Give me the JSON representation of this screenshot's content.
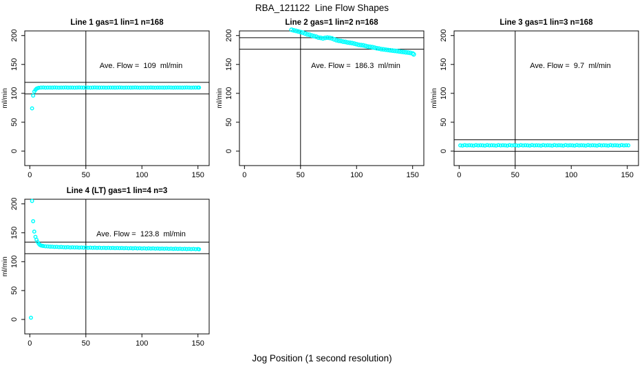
{
  "figure": {
    "title": "RBA_121122  Line Flow Shapes",
    "xlabel": "Jog Position (1 second resolution)"
  },
  "colors": {
    "points": "#00ffff",
    "axis": "#000000",
    "background": "#ffffff"
  },
  "chart_data": [
    {
      "type": "scatter",
      "title": "Line 1 gas=1 lin=1 n=168",
      "annotation": "Ave. Flow =  109  ml/min",
      "ave_flow": 109,
      "ylabel": "ml/min",
      "yticks": [
        0,
        50,
        100,
        150,
        200
      ],
      "xticks": [
        0,
        50,
        100,
        150
      ],
      "xlim": [
        -4.5,
        160
      ],
      "ylim": [
        -25,
        208
      ],
      "ref_lines_y": [
        119,
        99
      ],
      "vline_x": 50,
      "point_radius": 2.2,
      "points": [
        [
          2,
          74
        ],
        [
          3,
          96
        ],
        [
          4,
          103
        ],
        [
          5,
          106
        ],
        [
          6,
          108
        ],
        [
          7,
          109
        ],
        [
          8,
          109.6
        ],
        [
          10,
          110
        ],
        [
          12,
          110.2
        ],
        [
          14,
          109.8
        ],
        [
          16,
          110.1
        ],
        [
          18,
          110
        ],
        [
          20,
          109.9
        ],
        [
          22,
          110.2
        ],
        [
          24,
          110
        ],
        [
          26,
          109.8
        ],
        [
          28,
          110.1
        ],
        [
          30,
          110
        ],
        [
          32,
          110.2
        ],
        [
          34,
          109.9
        ],
        [
          36,
          110
        ],
        [
          38,
          110.1
        ],
        [
          40,
          109.8
        ],
        [
          42,
          110
        ],
        [
          44,
          110.2
        ],
        [
          46,
          110
        ],
        [
          48,
          109.9
        ],
        [
          50,
          110.1
        ],
        [
          52,
          110
        ],
        [
          54,
          109.8
        ],
        [
          56,
          110
        ],
        [
          58,
          110.2
        ],
        [
          60,
          110
        ],
        [
          62,
          109.9
        ],
        [
          64,
          110.1
        ],
        [
          66,
          110
        ],
        [
          68,
          109.8
        ],
        [
          70,
          110
        ],
        [
          72,
          110.1
        ],
        [
          74,
          110
        ],
        [
          76,
          109.9
        ],
        [
          78,
          110
        ],
        [
          80,
          110.2
        ],
        [
          82,
          110
        ],
        [
          84,
          109.8
        ],
        [
          86,
          110.1
        ],
        [
          88,
          110
        ],
        [
          90,
          109.9
        ],
        [
          92,
          110
        ],
        [
          94,
          110.2
        ],
        [
          96,
          110
        ],
        [
          98,
          109.8
        ],
        [
          100,
          110
        ],
        [
          102,
          110.1
        ],
        [
          104,
          109.9
        ],
        [
          106,
          110
        ],
        [
          108,
          110.2
        ],
        [
          110,
          110
        ],
        [
          112,
          109.8
        ],
        [
          114,
          110
        ],
        [
          116,
          110.1
        ],
        [
          118,
          110
        ],
        [
          120,
          109.9
        ],
        [
          122,
          110
        ],
        [
          124,
          110.2
        ],
        [
          126,
          110
        ],
        [
          128,
          109.8
        ],
        [
          130,
          110
        ],
        [
          132,
          110.1
        ],
        [
          134,
          110
        ],
        [
          136,
          109.9
        ],
        [
          138,
          110
        ],
        [
          140,
          110.2
        ],
        [
          142,
          110
        ],
        [
          144,
          109.8
        ],
        [
          146,
          110
        ],
        [
          148,
          110.1
        ],
        [
          150,
          110
        ],
        [
          151,
          110
        ]
      ]
    },
    {
      "type": "scatter",
      "title": "Line 2 gas=1 lin=2 n=168",
      "annotation": "Ave. Flow =  186.3  ml/min",
      "ave_flow": 186.3,
      "ylabel": "ml/min",
      "yticks": [
        0,
        50,
        100,
        150,
        200
      ],
      "xticks": [
        0,
        50,
        100,
        150
      ],
      "xlim": [
        -4.5,
        160
      ],
      "ylim": [
        -25,
        208
      ],
      "ref_lines_y": [
        196.3,
        176.3
      ],
      "vline_x": 50,
      "point_radius": 2.6,
      "points": [
        [
          42,
          210
        ],
        [
          44,
          209
        ],
        [
          46,
          208
        ],
        [
          48,
          207
        ],
        [
          50,
          206
        ],
        [
          52,
          205
        ],
        [
          54,
          203.5
        ],
        [
          56,
          202
        ],
        [
          58,
          201.5
        ],
        [
          60,
          200
        ],
        [
          62,
          199
        ],
        [
          64,
          198
        ],
        [
          66,
          196.5
        ],
        [
          68,
          196
        ],
        [
          70,
          195
        ],
        [
          72,
          196
        ],
        [
          74,
          196.5
        ],
        [
          76,
          196
        ],
        [
          78,
          195
        ],
        [
          80,
          193.5
        ],
        [
          82,
          192
        ],
        [
          84,
          191
        ],
        [
          86,
          190.5
        ],
        [
          88,
          189.5
        ],
        [
          90,
          189
        ],
        [
          92,
          188
        ],
        [
          94,
          187.5
        ],
        [
          96,
          187
        ],
        [
          98,
          186
        ],
        [
          100,
          185
        ],
        [
          102,
          184
        ],
        [
          104,
          183.5
        ],
        [
          106,
          183
        ],
        [
          108,
          182
        ],
        [
          110,
          181
        ],
        [
          112,
          180.5
        ],
        [
          114,
          180
        ],
        [
          116,
          179
        ],
        [
          118,
          178
        ],
        [
          120,
          177.5
        ],
        [
          122,
          176.5
        ],
        [
          124,
          176
        ],
        [
          126,
          175.5
        ],
        [
          128,
          175
        ],
        [
          130,
          174.5
        ],
        [
          132,
          174
        ],
        [
          134,
          173.5
        ],
        [
          136,
          173
        ],
        [
          138,
          172.5
        ],
        [
          140,
          172
        ],
        [
          142,
          171.5
        ],
        [
          144,
          171
        ],
        [
          146,
          170.5
        ],
        [
          148,
          170
        ],
        [
          150,
          169
        ],
        [
          151,
          167.5
        ]
      ]
    },
    {
      "type": "scatter",
      "title": "Line 3 gas=1 lin=3 n=168",
      "annotation": "Ave. Flow =  9.7  ml/min",
      "ave_flow": 9.7,
      "ylabel": "ml/min",
      "yticks": [
        0,
        50,
        100,
        150,
        200
      ],
      "xticks": [
        0,
        50,
        100,
        150
      ],
      "xlim": [
        -4.5,
        160
      ],
      "ylim": [
        -25,
        208
      ],
      "ref_lines_y": [
        19.7,
        -0.3
      ],
      "vline_x": 50,
      "point_radius": 2.2,
      "points": [
        [
          1,
          10
        ],
        [
          3,
          9.6
        ],
        [
          5,
          10.4
        ],
        [
          7,
          9.8
        ],
        [
          9,
          10.2
        ],
        [
          11,
          10
        ],
        [
          13,
          9.6
        ],
        [
          15,
          10.4
        ],
        [
          17,
          9.8
        ],
        [
          19,
          10.2
        ],
        [
          21,
          10
        ],
        [
          23,
          9.6
        ],
        [
          25,
          10.4
        ],
        [
          27,
          9.8
        ],
        [
          29,
          10.2
        ],
        [
          31,
          10
        ],
        [
          33,
          9.6
        ],
        [
          35,
          10.4
        ],
        [
          37,
          9.8
        ],
        [
          39,
          10.2
        ],
        [
          41,
          10
        ],
        [
          43,
          9.6
        ],
        [
          45,
          10.4
        ],
        [
          47,
          9.8
        ],
        [
          49,
          10.2
        ],
        [
          51,
          10
        ],
        [
          53,
          9.6
        ],
        [
          55,
          10.4
        ],
        [
          57,
          9.8
        ],
        [
          59,
          10.2
        ],
        [
          61,
          10
        ],
        [
          63,
          9.6
        ],
        [
          65,
          10.4
        ],
        [
          67,
          9.8
        ],
        [
          69,
          10.2
        ],
        [
          71,
          10
        ],
        [
          73,
          9.6
        ],
        [
          75,
          10.4
        ],
        [
          77,
          9.8
        ],
        [
          79,
          10.2
        ],
        [
          81,
          10
        ],
        [
          83,
          9.6
        ],
        [
          85,
          10.4
        ],
        [
          87,
          9.8
        ],
        [
          89,
          10.2
        ],
        [
          91,
          10
        ],
        [
          93,
          9.6
        ],
        [
          95,
          10.4
        ],
        [
          97,
          9.8
        ],
        [
          99,
          10.2
        ],
        [
          101,
          10
        ],
        [
          103,
          9.6
        ],
        [
          105,
          10.4
        ],
        [
          107,
          9.8
        ],
        [
          109,
          10.2
        ],
        [
          111,
          10
        ],
        [
          113,
          9.6
        ],
        [
          115,
          10.4
        ],
        [
          117,
          9.8
        ],
        [
          119,
          10.2
        ],
        [
          121,
          10
        ],
        [
          123,
          9.6
        ],
        [
          125,
          10.4
        ],
        [
          127,
          9.8
        ],
        [
          129,
          10.2
        ],
        [
          131,
          10
        ],
        [
          133,
          9.6
        ],
        [
          135,
          10.4
        ],
        [
          137,
          9.8
        ],
        [
          139,
          10.2
        ],
        [
          141,
          10
        ],
        [
          143,
          9.6
        ],
        [
          145,
          10.4
        ],
        [
          147,
          9.8
        ],
        [
          149,
          10.2
        ],
        [
          151,
          10
        ]
      ]
    },
    {
      "type": "scatter",
      "title": "Line 4 (LT) gas=1 lin=4 n=3",
      "annotation": "Ave. Flow =  123.8  ml/min",
      "ave_flow": 123.8,
      "ylabel": "ml/min",
      "yticks": [
        0,
        50,
        100,
        150,
        200
      ],
      "xticks": [
        0,
        50,
        100,
        150
      ],
      "xlim": [
        -4.5,
        160
      ],
      "ylim": [
        -25,
        208
      ],
      "ref_lines_y": [
        133.8,
        113.8
      ],
      "vline_x": 50,
      "point_radius": 2.2,
      "points": [
        [
          1,
          3
        ],
        [
          2,
          205
        ],
        [
          3,
          170
        ],
        [
          4,
          152
        ],
        [
          5,
          143
        ],
        [
          6,
          138
        ],
        [
          7,
          134
        ],
        [
          8,
          131
        ],
        [
          9,
          129
        ],
        [
          10,
          128
        ],
        [
          11,
          127.5
        ],
        [
          12,
          127
        ],
        [
          14,
          126.5
        ],
        [
          16,
          126.3
        ],
        [
          18,
          126
        ],
        [
          20,
          125.8
        ],
        [
          22,
          125.5
        ],
        [
          24,
          125.6
        ],
        [
          26,
          125.2
        ],
        [
          28,
          125.4
        ],
        [
          30,
          125
        ],
        [
          32,
          124.8
        ],
        [
          34,
          125.1
        ],
        [
          36,
          124.6
        ],
        [
          38,
          124.9
        ],
        [
          40,
          124.5
        ],
        [
          42,
          124.7
        ],
        [
          44,
          124.3
        ],
        [
          46,
          124.6
        ],
        [
          48,
          124.2
        ],
        [
          50,
          124.5
        ],
        [
          52,
          124
        ],
        [
          54,
          124.3
        ],
        [
          56,
          123.9
        ],
        [
          58,
          124.2
        ],
        [
          60,
          123.8
        ],
        [
          62,
          124.1
        ],
        [
          64,
          123.7
        ],
        [
          66,
          124
        ],
        [
          68,
          123.6
        ],
        [
          70,
          123.9
        ],
        [
          72,
          123.5
        ],
        [
          74,
          123.8
        ],
        [
          76,
          123.4
        ],
        [
          78,
          123.7
        ],
        [
          80,
          123.3
        ],
        [
          82,
          123.6
        ],
        [
          84,
          123.2
        ],
        [
          86,
          123.5
        ],
        [
          88,
          123.1
        ],
        [
          90,
          123.4
        ],
        [
          92,
          123
        ],
        [
          94,
          123.3
        ],
        [
          96,
          122.9
        ],
        [
          98,
          123.2
        ],
        [
          100,
          122.8
        ],
        [
          102,
          123.1
        ],
        [
          104,
          122.7
        ],
        [
          106,
          123
        ],
        [
          108,
          122.6
        ],
        [
          110,
          122.9
        ],
        [
          112,
          122.5
        ],
        [
          114,
          122.8
        ],
        [
          116,
          122.4
        ],
        [
          118,
          122.7
        ],
        [
          120,
          122.3
        ],
        [
          122,
          122.6
        ],
        [
          124,
          122.2
        ],
        [
          126,
          122.5
        ],
        [
          128,
          122.1
        ],
        [
          130,
          122.4
        ],
        [
          132,
          122
        ],
        [
          134,
          122.3
        ],
        [
          136,
          121.9
        ],
        [
          138,
          122.2
        ],
        [
          140,
          121.8
        ],
        [
          142,
          122.1
        ],
        [
          144,
          121.7
        ],
        [
          146,
          122
        ],
        [
          148,
          121.6
        ],
        [
          150,
          121.9
        ],
        [
          151,
          121.5
        ]
      ]
    }
  ]
}
